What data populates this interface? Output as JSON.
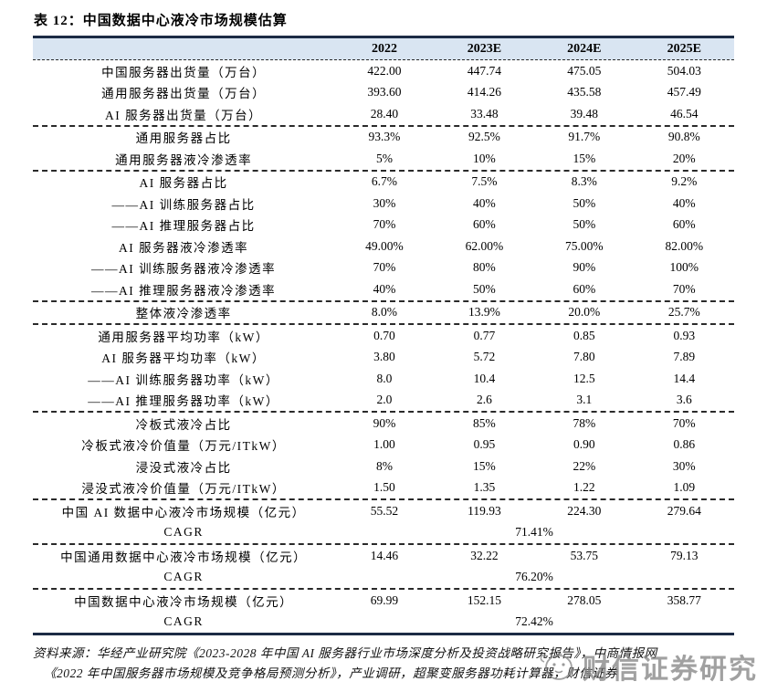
{
  "title": "表 12：中国数据中心液冷市场规模估算",
  "table": {
    "columns": [
      "2022",
      "2023E",
      "2024E",
      "2025E"
    ],
    "sections": [
      {
        "rows": [
          {
            "label": "中国服务器出货量（万台）",
            "values": [
              "422.00",
              "447.74",
              "475.05",
              "504.03"
            ]
          },
          {
            "label": "通用服务器出货量（万台）",
            "values": [
              "393.60",
              "414.26",
              "435.58",
              "457.49"
            ]
          },
          {
            "label": "AI 服务器出货量（万台）",
            "values": [
              "28.40",
              "33.48",
              "39.48",
              "46.54"
            ]
          }
        ]
      },
      {
        "rows": [
          {
            "label": "通用服务器占比",
            "values": [
              "93.3%",
              "92.5%",
              "91.7%",
              "90.8%"
            ]
          },
          {
            "label": "通用服务器液冷渗透率",
            "values": [
              "5%",
              "10%",
              "15%",
              "20%"
            ]
          }
        ]
      },
      {
        "rows": [
          {
            "label": "AI 服务器占比",
            "values": [
              "6.7%",
              "7.5%",
              "8.3%",
              "9.2%"
            ]
          },
          {
            "label": "——AI 训练服务器占比",
            "values": [
              "30%",
              "40%",
              "50%",
              "40%"
            ]
          },
          {
            "label": "——AI 推理服务器占比",
            "values": [
              "70%",
              "60%",
              "50%",
              "60%"
            ]
          },
          {
            "label": "AI 服务器液冷渗透率",
            "values": [
              "49.00%",
              "62.00%",
              "75.00%",
              "82.00%"
            ]
          },
          {
            "label": "——AI 训练服务器液冷渗透率",
            "values": [
              "70%",
              "80%",
              "90%",
              "100%"
            ]
          },
          {
            "label": "——AI 推理服务器液冷渗透率",
            "values": [
              "40%",
              "50%",
              "60%",
              "70%"
            ]
          }
        ]
      },
      {
        "rows": [
          {
            "label": "整体液冷渗透率",
            "values": [
              "8.0%",
              "13.9%",
              "20.0%",
              "25.7%"
            ]
          }
        ]
      },
      {
        "rows": [
          {
            "label": "通用服务器平均功率（kW）",
            "values": [
              "0.70",
              "0.77",
              "0.85",
              "0.93"
            ]
          },
          {
            "label": "AI 服务器平均功率（kW）",
            "values": [
              "3.80",
              "5.72",
              "7.80",
              "7.89"
            ]
          },
          {
            "label": "——AI 训练服务器功率（kW）",
            "values": [
              "8.0",
              "10.4",
              "12.5",
              "14.4"
            ]
          },
          {
            "label": "——AI 推理服务器功率（kW）",
            "values": [
              "2.0",
              "2.6",
              "3.1",
              "3.6"
            ]
          }
        ]
      },
      {
        "rows": [
          {
            "label": "冷板式液冷占比",
            "values": [
              "90%",
              "85%",
              "78%",
              "70%"
            ]
          },
          {
            "label": "冷板式液冷价值量（万元/ITkW）",
            "values": [
              "1.00",
              "0.95",
              "0.90",
              "0.86"
            ]
          },
          {
            "label": "浸没式液冷占比",
            "values": [
              "8%",
              "15%",
              "22%",
              "30%"
            ]
          },
          {
            "label": "浸没式液冷价值量（万元/ITkW）",
            "values": [
              "1.50",
              "1.35",
              "1.22",
              "1.09"
            ]
          }
        ]
      },
      {
        "rows": [
          {
            "label": "中国 AI 数据中心液冷市场规模（亿元）",
            "values": [
              "55.52",
              "119.93",
              "224.30",
              "279.64"
            ]
          },
          {
            "label": "CAGR",
            "span_value": "71.41%"
          }
        ]
      },
      {
        "rows": [
          {
            "label": "中国通用数据中心液冷市场规模（亿元）",
            "values": [
              "14.46",
              "32.22",
              "53.75",
              "79.13"
            ]
          },
          {
            "label": "CAGR",
            "span_value": "76.20%"
          }
        ]
      },
      {
        "rows": [
          {
            "label": "中国数据中心液冷市场规模（亿元）",
            "values": [
              "69.99",
              "152.15",
              "278.05",
              "358.77"
            ]
          },
          {
            "label": "CAGR",
            "span_value": "72.42%"
          }
        ]
      }
    ]
  },
  "source": {
    "line1": "资料来源：华经产业研究院《2023-2028 年中国 AI 服务器行业市场深度分析及投资战略研究报告》，中商情报网",
    "line2": "《2022 年中国服务器市场规模及竞争格局预测分析》，产业调研，超聚变服务器功耗计算器，财信证券"
  },
  "watermark": {
    "text": "财信证券研究"
  },
  "colors": {
    "header_bg": "#d9e5f2",
    "solid_border": "#1c2b45",
    "watermark_gray": "#828282"
  }
}
